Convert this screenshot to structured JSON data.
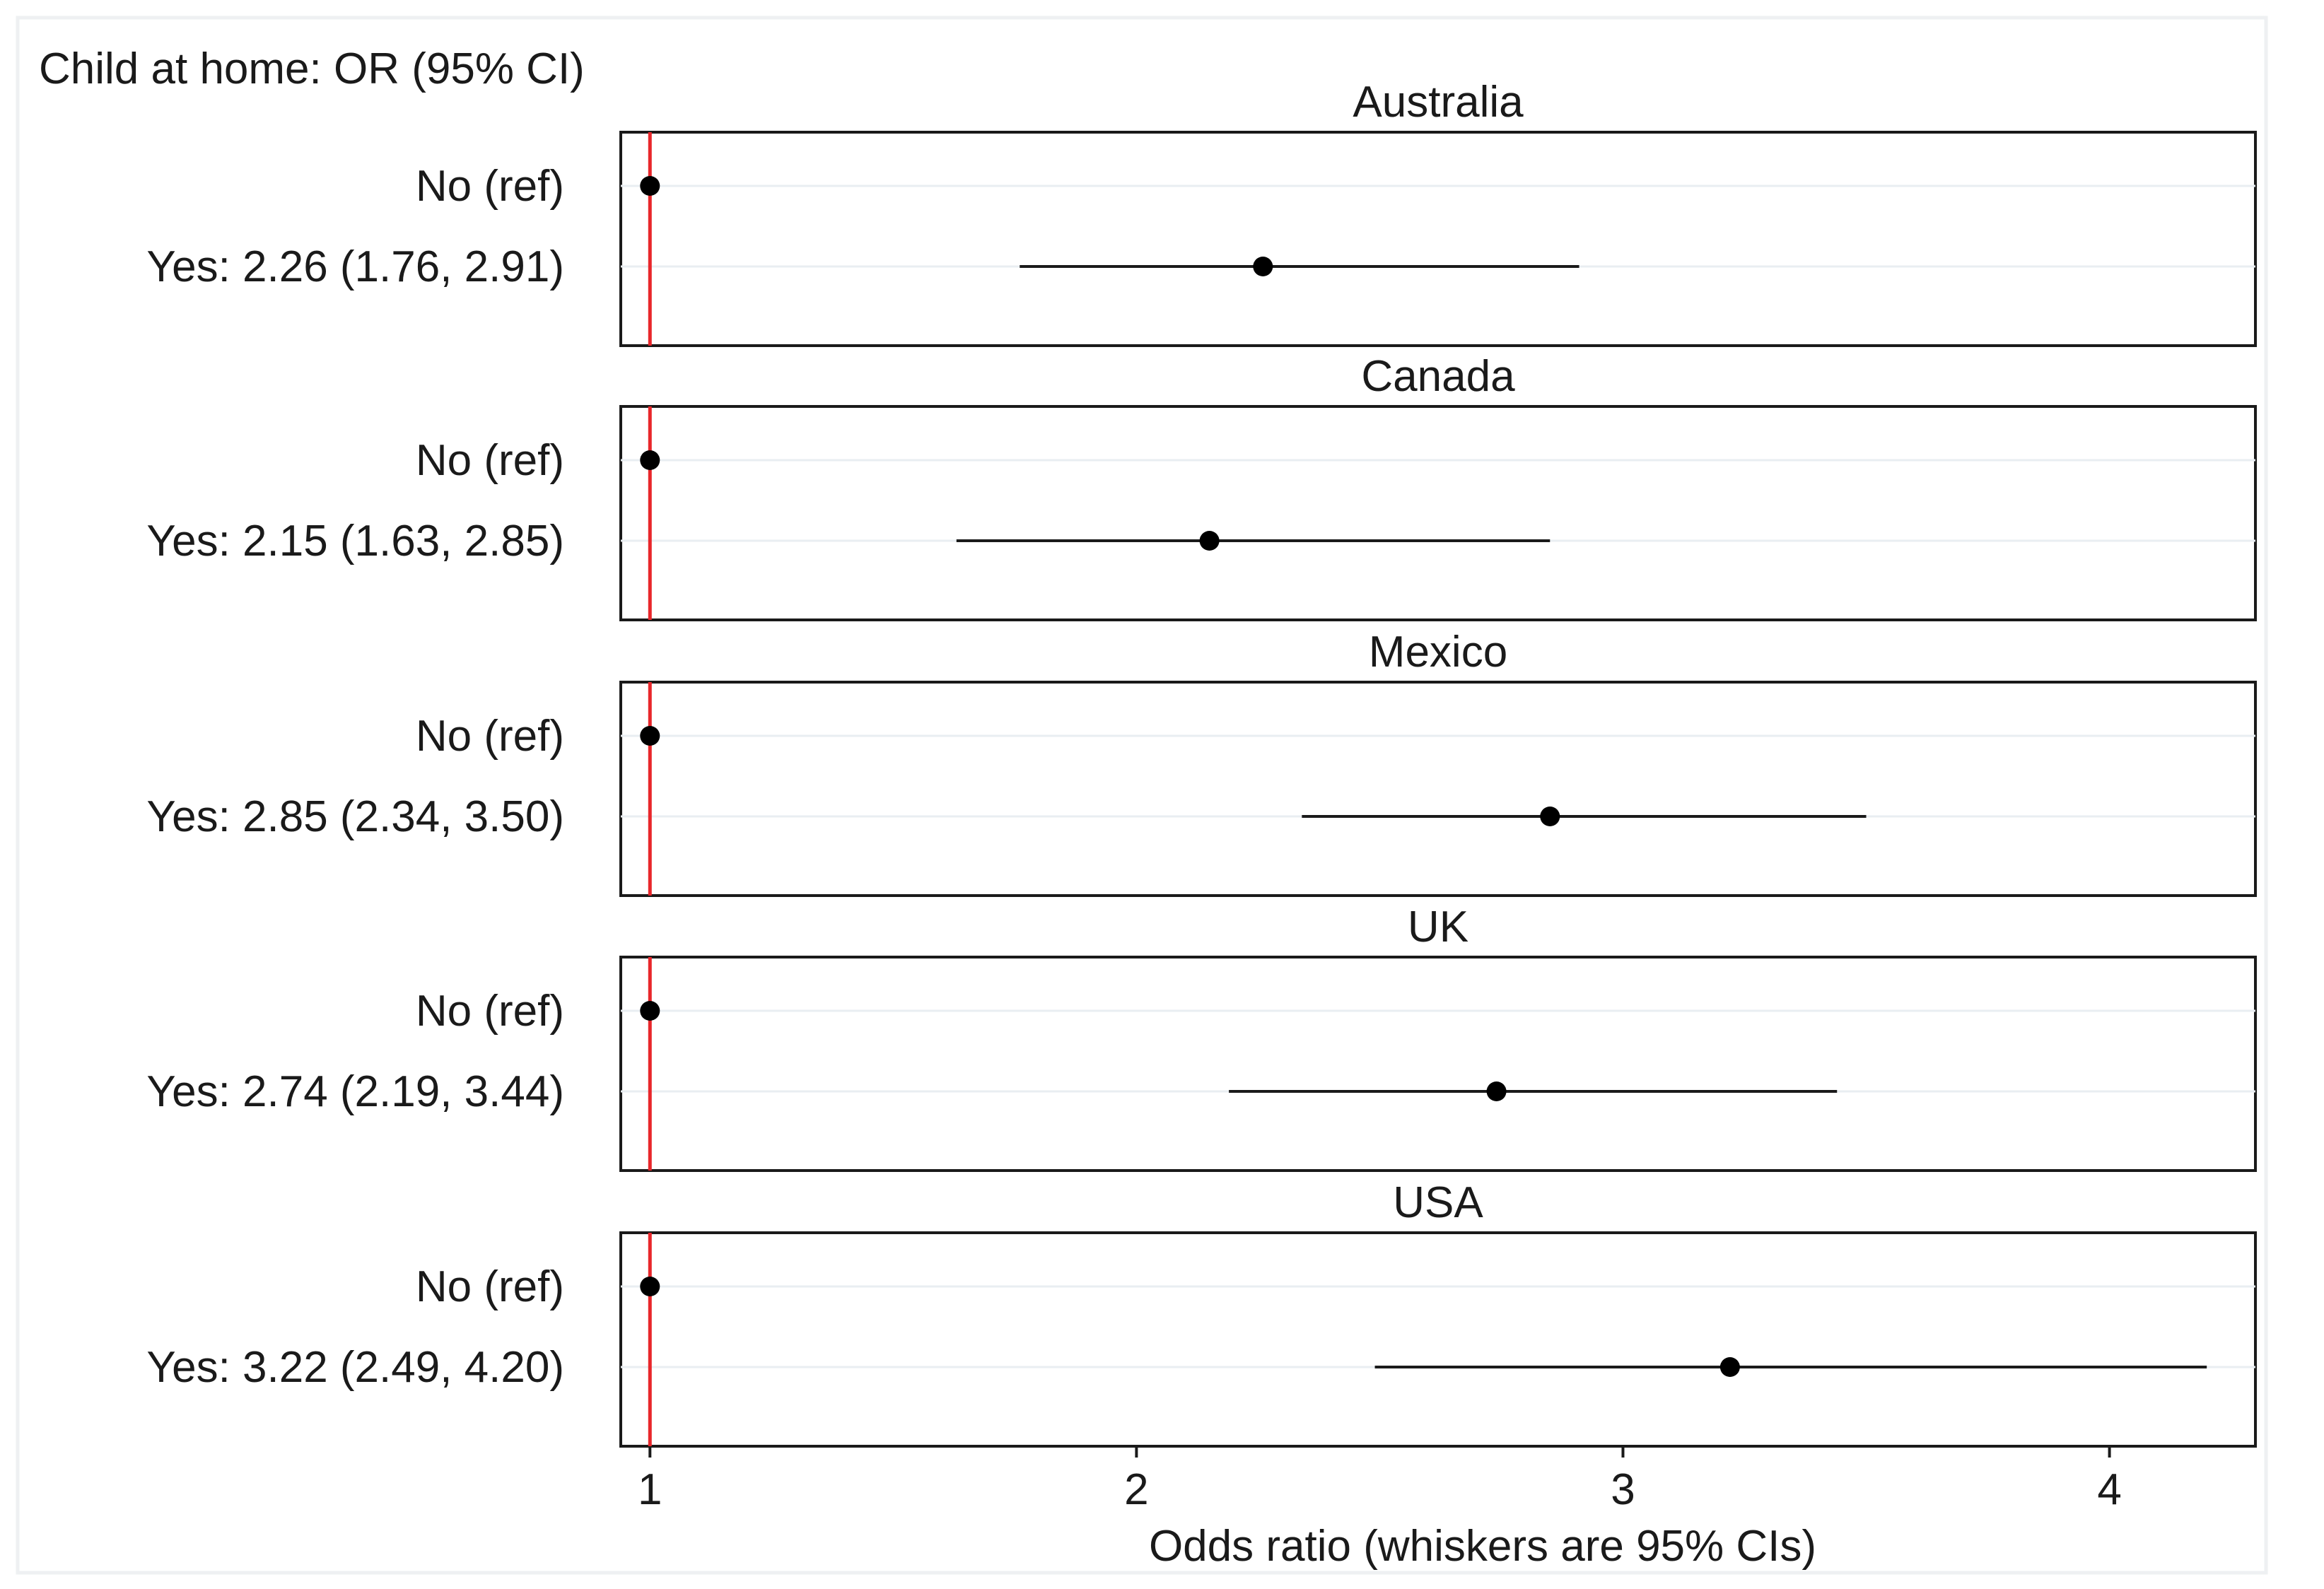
{
  "chart_data": {
    "type": "scatter",
    "header": "Child at home: OR (95% CI)",
    "xlabel": "Odds ratio (whiskers are 95% CIs)",
    "xlim": [
      0.94,
      4.3
    ],
    "xticks": [
      1,
      2,
      3,
      4
    ],
    "reference_line": {
      "x": 1,
      "color": "#e8262a"
    },
    "point_color": "#000000",
    "whisker_color": "#1a1a1a",
    "panels": [
      {
        "title": "Australia",
        "rows": [
          {
            "label": "No (ref)",
            "or": 1,
            "lo": null,
            "hi": null
          },
          {
            "label": "Yes: 2.26 (1.76, 2.91)",
            "or": 2.26,
            "lo": 1.76,
            "hi": 2.91
          }
        ]
      },
      {
        "title": "Canada",
        "rows": [
          {
            "label": "No (ref)",
            "or": 1,
            "lo": null,
            "hi": null
          },
          {
            "label": "Yes: 2.15 (1.63, 2.85)",
            "or": 2.15,
            "lo": 1.63,
            "hi": 2.85
          }
        ]
      },
      {
        "title": "Mexico",
        "rows": [
          {
            "label": "No (ref)",
            "or": 1,
            "lo": null,
            "hi": null
          },
          {
            "label": "Yes: 2.85 (2.34, 3.50)",
            "or": 2.85,
            "lo": 2.34,
            "hi": 3.5
          }
        ]
      },
      {
        "title": "UK",
        "rows": [
          {
            "label": "No (ref)",
            "or": 1,
            "lo": null,
            "hi": null
          },
          {
            "label": "Yes: 2.74 (2.19, 3.44)",
            "or": 2.74,
            "lo": 2.19,
            "hi": 3.44
          }
        ]
      },
      {
        "title": "USA",
        "rows": [
          {
            "label": "No (ref)",
            "or": 1,
            "lo": null,
            "hi": null
          },
          {
            "label": "Yes: 3.22 (2.49, 4.20)",
            "or": 3.22,
            "lo": 2.49,
            "hi": 4.2
          }
        ]
      }
    ]
  }
}
